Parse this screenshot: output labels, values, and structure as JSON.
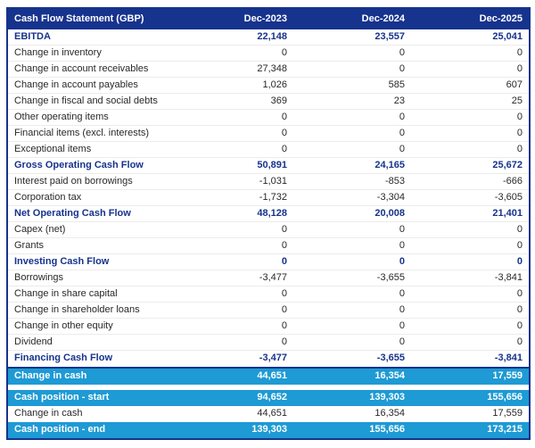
{
  "colors": {
    "navy": "#16338D",
    "highlight_blue": "#1E9AD4",
    "body_text": "#282828",
    "row_separator": "#ECECEC",
    "header_text": "#FFFFFF"
  },
  "table": {
    "header": {
      "label": "Cash Flow Statement (GBP)",
      "columns": [
        "Dec-2023",
        "Dec-2024",
        "Dec-2025"
      ]
    },
    "rows": [
      {
        "label": "EBITDA",
        "values": [
          "22,148",
          "23,557",
          "25,041"
        ],
        "type": "subtotal"
      },
      {
        "label": "Change in inventory",
        "values": [
          "0",
          "0",
          "0"
        ],
        "type": "item"
      },
      {
        "label": "Change in account receivables",
        "values": [
          "27,348",
          "0",
          "0"
        ],
        "type": "item"
      },
      {
        "label": "Change in account payables",
        "values": [
          "1,026",
          "585",
          "607"
        ],
        "type": "item"
      },
      {
        "label": "Change in fiscal and social debts",
        "values": [
          "369",
          "23",
          "25"
        ],
        "type": "item"
      },
      {
        "label": "Other operating items",
        "values": [
          "0",
          "0",
          "0"
        ],
        "type": "item"
      },
      {
        "label": "Financial items (excl. interests)",
        "values": [
          "0",
          "0",
          "0"
        ],
        "type": "item"
      },
      {
        "label": "Exceptional items",
        "values": [
          "0",
          "0",
          "0"
        ],
        "type": "item"
      },
      {
        "label": "Gross Operating Cash Flow",
        "values": [
          "50,891",
          "24,165",
          "25,672"
        ],
        "type": "subtotal"
      },
      {
        "label": "Interest paid on borrowings",
        "values": [
          "-1,031",
          "-853",
          "-666"
        ],
        "type": "item"
      },
      {
        "label": "Corporation tax",
        "values": [
          "-1,732",
          "-3,304",
          "-3,605"
        ],
        "type": "item"
      },
      {
        "label": "Net Operating Cash Flow",
        "values": [
          "48,128",
          "20,008",
          "21,401"
        ],
        "type": "subtotal"
      },
      {
        "label": "Capex (net)",
        "values": [
          "0",
          "0",
          "0"
        ],
        "type": "item"
      },
      {
        "label": "Grants",
        "values": [
          "0",
          "0",
          "0"
        ],
        "type": "item"
      },
      {
        "label": "Investing Cash Flow",
        "values": [
          "0",
          "0",
          "0"
        ],
        "type": "subtotal"
      },
      {
        "label": "Borrowings",
        "values": [
          "-3,477",
          "-3,655",
          "-3,841"
        ],
        "type": "item"
      },
      {
        "label": "Change in share capital",
        "values": [
          "0",
          "0",
          "0"
        ],
        "type": "item"
      },
      {
        "label": "Change in shareholder loans",
        "values": [
          "0",
          "0",
          "0"
        ],
        "type": "item"
      },
      {
        "label": "Change in other equity",
        "values": [
          "0",
          "0",
          "0"
        ],
        "type": "item"
      },
      {
        "label": "Dividend",
        "values": [
          "0",
          "0",
          "0"
        ],
        "type": "item"
      },
      {
        "label": "Financing Cash Flow",
        "values": [
          "-3,477",
          "-3,655",
          "-3,841"
        ],
        "type": "subtotal_nosep"
      },
      {
        "label": "Change in cash",
        "values": [
          "44,651",
          "16,354",
          "17,559"
        ],
        "type": "highlight_top"
      },
      {
        "type": "spacer"
      },
      {
        "label": "Cash position - start",
        "values": [
          "94,652",
          "139,303",
          "155,656"
        ],
        "type": "highlight"
      },
      {
        "label": "Change in cash",
        "values": [
          "44,651",
          "16,354",
          "17,559"
        ],
        "type": "item_nosep"
      },
      {
        "label": "Cash position - end",
        "values": [
          "139,303",
          "155,656",
          "173,215"
        ],
        "type": "highlight"
      }
    ]
  }
}
